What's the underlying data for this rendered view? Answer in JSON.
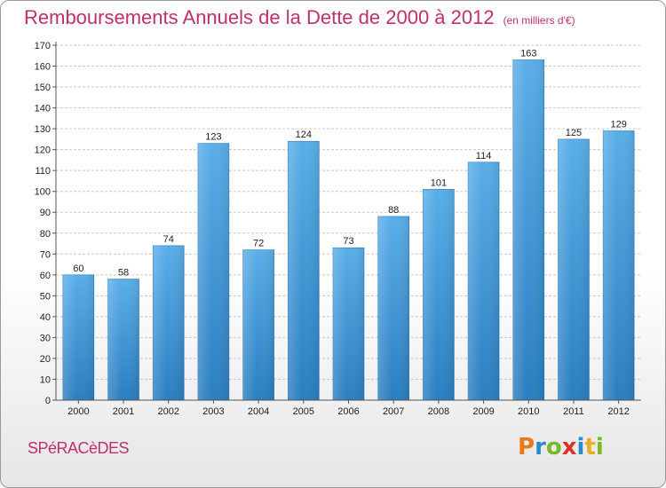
{
  "header": {
    "title": "Remboursements Annuels de la Dette de 2000 à 2012",
    "subtitle": "(en milliers d'€)"
  },
  "footer": {
    "place": "SPéRACèDES",
    "logo": [
      "P",
      "r",
      "o",
      "x",
      "i",
      "t",
      "i"
    ]
  },
  "colors": {
    "title": "#c0306a",
    "bar_top": "#5aaee8",
    "bar_bottom": "#2a7ec0",
    "grid": "#c8c8c8",
    "logo": [
      "#e87a1a",
      "#2a8ad0",
      "#7ab82a",
      "#e0302a",
      "#2a8ad0",
      "#e8b020",
      "#7ab82a"
    ]
  },
  "chart_data": {
    "type": "bar",
    "title": "Remboursements Annuels de la Dette de 2000 à 2012",
    "categories": [
      "2000",
      "2001",
      "2002",
      "2003",
      "2004",
      "2005",
      "2006",
      "2007",
      "2008",
      "2009",
      "2010",
      "2011",
      "2012"
    ],
    "values": [
      60,
      58,
      74,
      123,
      72,
      124,
      73,
      88,
      101,
      114,
      163,
      125,
      129
    ],
    "ylim": [
      0,
      170
    ],
    "yticks": [
      0,
      10,
      20,
      30,
      40,
      50,
      60,
      70,
      80,
      90,
      100,
      110,
      120,
      130,
      140,
      150,
      160,
      170
    ],
    "grid": true,
    "xlabel": "",
    "ylabel": ""
  }
}
